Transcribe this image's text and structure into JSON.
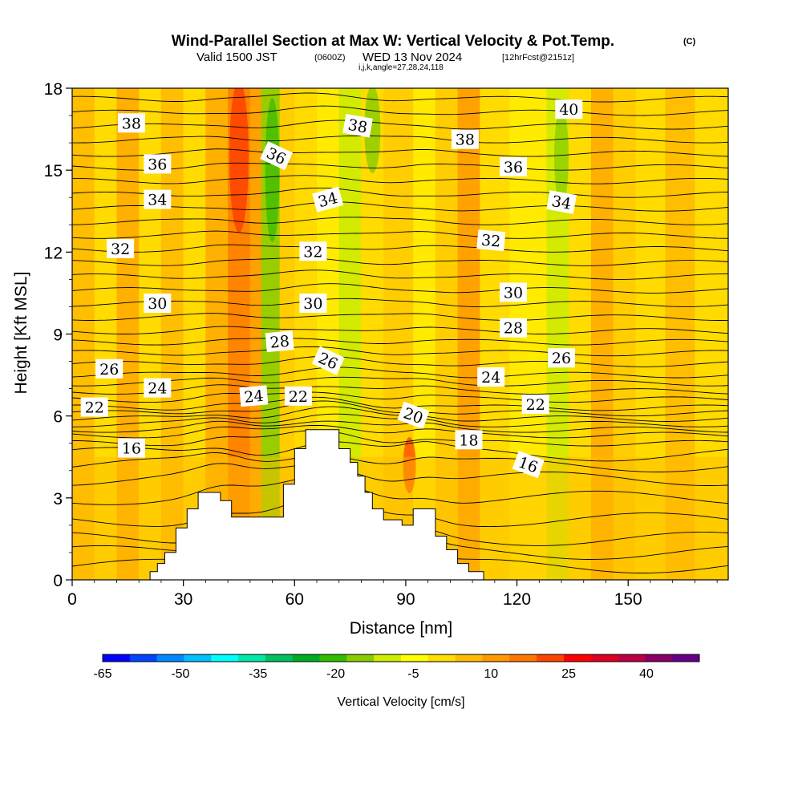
{
  "title": {
    "main": "Wind-Parallel Section at Max W: Vertical Velocity & Pot.Temp.",
    "main_suffix": "(C)",
    "valid_prefix": "Valid 1500 JST",
    "valid_utc": "(0600Z)",
    "valid_date": "WED 13 Nov 2024",
    "forecast": "[12hrFcst@2151z]",
    "indices": "i,j,k,angle=27,28,24,118"
  },
  "chart_data": {
    "type": "heatmap",
    "xlabel": "Distance [nm]",
    "ylabel": "Height [Kft MSL]",
    "xlim": [
      0,
      177
    ],
    "ylim": [
      0,
      18
    ],
    "x_ticks": [
      "0",
      "30",
      "60",
      "90",
      "120",
      "150"
    ],
    "y_ticks": [
      "0",
      "3",
      "6",
      "9",
      "12",
      "15",
      "18"
    ],
    "grid": false,
    "colorbar": {
      "title": "Vertical Velocity [cm/s]",
      "placement": "bottom",
      "tick_labels": [
        "-65",
        "-50",
        "-35",
        "-20",
        "-5",
        "10",
        "25",
        "40"
      ],
      "colors": [
        "#0000ff",
        "#0044ff",
        "#0088ff",
        "#00c0ff",
        "#00ffff",
        "#00e8a8",
        "#00c060",
        "#00aa22",
        "#33bb00",
        "#88cc00",
        "#ccee00",
        "#ffff00",
        "#ffdd00",
        "#ffbb00",
        "#ff9900",
        "#ff7700",
        "#ff4400",
        "#ff0000",
        "#dd0022",
        "#bb0044",
        "#880066",
        "#660088"
      ]
    },
    "terrain": [
      [
        0,
        0
      ],
      [
        21,
        0
      ],
      [
        21,
        0.3
      ],
      [
        23,
        0.3
      ],
      [
        23,
        0.6
      ],
      [
        25,
        0.6
      ],
      [
        25,
        1
      ],
      [
        28,
        1
      ],
      [
        28,
        1.9
      ],
      [
        31,
        1.9
      ],
      [
        31,
        2.6
      ],
      [
        34,
        2.6
      ],
      [
        34,
        3.2
      ],
      [
        40,
        3.2
      ],
      [
        40,
        2.9
      ],
      [
        43,
        2.9
      ],
      [
        43,
        2.3
      ],
      [
        48,
        2.3
      ],
      [
        48,
        2.3
      ],
      [
        57,
        2.3
      ],
      [
        57,
        3.5
      ],
      [
        60,
        3.5
      ],
      [
        60,
        4.8
      ],
      [
        63,
        4.8
      ],
      [
        63,
        5.5
      ],
      [
        72,
        5.5
      ],
      [
        72,
        4.8
      ],
      [
        75,
        4.8
      ],
      [
        75,
        4.3
      ],
      [
        77,
        4.3
      ],
      [
        77,
        3.8
      ],
      [
        79,
        3.8
      ],
      [
        79,
        3.2
      ],
      [
        81,
        3.2
      ],
      [
        81,
        2.6
      ],
      [
        84,
        2.6
      ],
      [
        84,
        2.2
      ],
      [
        89,
        2.2
      ],
      [
        89,
        2
      ],
      [
        92,
        2
      ],
      [
        92,
        2.6
      ],
      [
        98,
        2.6
      ],
      [
        98,
        1.6
      ],
      [
        101,
        1.6
      ],
      [
        101,
        1.1
      ],
      [
        104,
        1.1
      ],
      [
        104,
        0.6
      ],
      [
        107,
        0.6
      ],
      [
        107,
        0.3
      ],
      [
        111,
        0.3
      ],
      [
        111,
        0
      ],
      [
        177,
        0
      ]
    ],
    "isentrope_labels": [
      {
        "text": "38",
        "x": 16,
        "y": 16.7,
        "angle": 0
      },
      {
        "text": "36",
        "x": 23,
        "y": 15.2,
        "angle": 0
      },
      {
        "text": "34",
        "x": 23,
        "y": 13.9,
        "angle": 0
      },
      {
        "text": "32",
        "x": 13,
        "y": 12.1,
        "angle": 0
      },
      {
        "text": "30",
        "x": 23,
        "y": 10.1,
        "angle": 0
      },
      {
        "text": "26",
        "x": 10,
        "y": 7.7,
        "angle": 0
      },
      {
        "text": "24",
        "x": 23,
        "y": 7.0,
        "angle": 0
      },
      {
        "text": "22",
        "x": 6,
        "y": 6.3,
        "angle": 0
      },
      {
        "text": "16",
        "x": 16,
        "y": 4.8,
        "angle": 0
      },
      {
        "text": "36",
        "x": 55,
        "y": 15.5,
        "angle": 25
      },
      {
        "text": "38",
        "x": 77,
        "y": 16.6,
        "angle": 10
      },
      {
        "text": "34",
        "x": 69,
        "y": 13.9,
        "angle": -15
      },
      {
        "text": "32",
        "x": 65,
        "y": 12.0,
        "angle": 0
      },
      {
        "text": "30",
        "x": 65,
        "y": 10.1,
        "angle": 0
      },
      {
        "text": "28",
        "x": 56,
        "y": 8.7,
        "angle": -5
      },
      {
        "text": "26",
        "x": 69,
        "y": 8.0,
        "angle": 25
      },
      {
        "text": "24",
        "x": 49,
        "y": 6.7,
        "angle": -5
      },
      {
        "text": "22",
        "x": 61,
        "y": 6.7,
        "angle": 0
      },
      {
        "text": "20",
        "x": 92,
        "y": 6.0,
        "angle": 20
      },
      {
        "text": "18",
        "x": 107,
        "y": 5.1,
        "angle": 0
      },
      {
        "text": "16",
        "x": 123,
        "y": 4.2,
        "angle": 20
      },
      {
        "text": "38",
        "x": 106,
        "y": 16.1,
        "angle": 0
      },
      {
        "text": "36",
        "x": 119,
        "y": 15.1,
        "angle": 0
      },
      {
        "text": "32",
        "x": 113,
        "y": 12.4,
        "angle": 5
      },
      {
        "text": "30",
        "x": 119,
        "y": 10.5,
        "angle": 0
      },
      {
        "text": "28",
        "x": 119,
        "y": 9.2,
        "angle": 0
      },
      {
        "text": "24",
        "x": 113,
        "y": 7.4,
        "angle": 0
      },
      {
        "text": "22",
        "x": 125,
        "y": 6.4,
        "angle": 0
      },
      {
        "text": "40",
        "x": 134,
        "y": 17.2,
        "angle": 0
      },
      {
        "text": "34",
        "x": 132,
        "y": 13.8,
        "angle": 10
      },
      {
        "text": "26",
        "x": 132,
        "y": 8.1,
        "angle": 0
      }
    ],
    "isentrope_heights": [
      0.5,
      1.0,
      1.5,
      2.2,
      3.0,
      3.7,
      4.2,
      4.6,
      5.0,
      5.3,
      5.5,
      5.7,
      5.9,
      6.1,
      6.3,
      6.6,
      6.9,
      7.2,
      7.5,
      7.9,
      8.3,
      8.7,
      9.1,
      9.6,
      10.1,
      10.6,
      11.1,
      11.6,
      12.1,
      12.6,
      13.1,
      13.6,
      14.1,
      14.6,
      15.1,
      15.6,
      16.1,
      16.6,
      17.1,
      17.6
    ]
  }
}
